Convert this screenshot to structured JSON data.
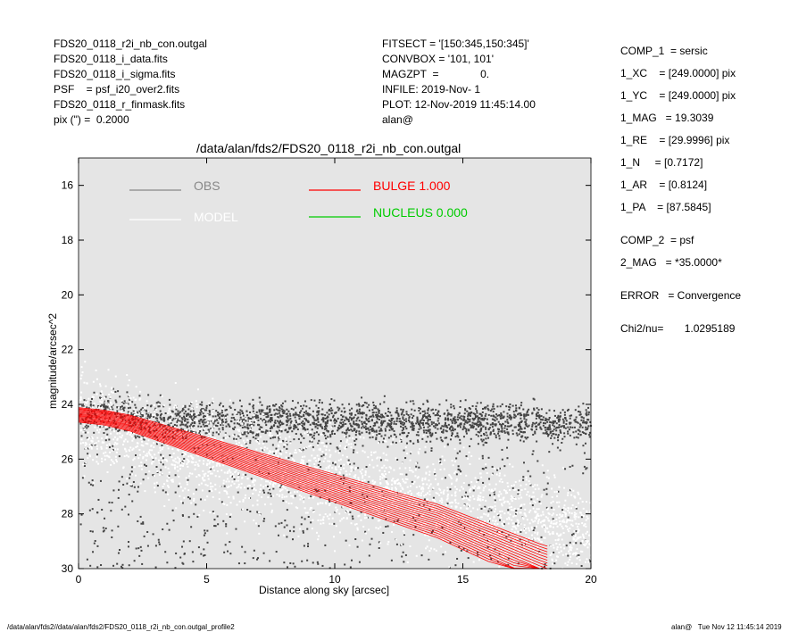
{
  "header_left": [
    "FDS20_0118_r2i_nb_con.outgal",
    "FDS20_0118_i_data.fits",
    "FDS20_0118_i_sigma.fits",
    "PSF    = psf_i20_over2.fits",
    "FDS20_0118_r_finmask.fits",
    "pix (\") =  0.2000"
  ],
  "header_mid": [
    "FITSECT = '[150:345,150:345]'",
    "CONVBOX = '101, 101'",
    "MAGZPT  =              0.",
    "INFILE: 2019-Nov- 1",
    "PLOT: 12-Nov-2019 11:45:14.00",
    "alan@"
  ],
  "params": [
    "COMP_1  = sersic",
    "1_XC    = [249.0000] pix",
    "1_YC    = [249.0000] pix",
    "1_MAG   = 19.3039",
    "1_RE    = [29.9996] pix",
    "1_N     = [0.7172]",
    "1_AR    = [0.8124]",
    "1_PA    = [87.5845]",
    "COMP_2  = psf",
    "2_MAG   = *35.0000*",
    "ERROR   = Convergence",
    "Chi2/nu=       1.0295189"
  ],
  "plot_title": "/data/alan/fds2/FDS20_0118_r2i_nb_con.outgal",
  "footer_left": "/data/alan/fds2//data/alan/fds2/FDS20_0118_r2i_nb_con.outgal_profile2",
  "footer_right": "alan@   Tue Nov 12 11:45:14 2019",
  "chart_data": {
    "type": "scatter",
    "xlabel": "Distance along sky [arcsec]",
    "ylabel": "magnitude/arcsec^2",
    "xlim": [
      0,
      20
    ],
    "ylim": [
      30,
      15
    ],
    "y_inverted": true,
    "xticks": [
      0,
      5,
      10,
      15,
      20
    ],
    "yticks": [
      16,
      18,
      20,
      22,
      24,
      26,
      28,
      30
    ],
    "background": "#e5e5e5",
    "legend": [
      {
        "label": "OBS",
        "color": "#888888"
      },
      {
        "label": "MODEL",
        "color": "#ffffff"
      },
      {
        "label": "BULGE  1.000",
        "color": "#ff0000"
      },
      {
        "label": "NUCLEUS  0.000",
        "color": "#00cc00"
      }
    ],
    "series": [
      {
        "name": "OBS",
        "color": "#444444",
        "x": [
          0.2,
          0.5,
          0.8,
          1.0,
          1.5,
          2.0,
          2.5,
          3.0,
          4.0,
          5.0,
          6.0,
          7.0,
          8.0,
          9.0,
          10.0,
          11.0,
          12.0,
          13.0,
          14.0,
          15.0,
          16.0,
          17.0,
          18.0,
          19.0,
          19.8
        ],
        "y": [
          24.6,
          24.3,
          24.2,
          24.2,
          24.3,
          24.4,
          24.5,
          24.6,
          24.6,
          24.6,
          24.6,
          24.6,
          24.6,
          24.6,
          24.6,
          24.6,
          24.6,
          24.6,
          24.7,
          24.6,
          24.6,
          24.6,
          24.6,
          24.7,
          24.6
        ]
      },
      {
        "name": "MODEL",
        "color": "#ffffff",
        "x": [
          0.0,
          1.0,
          2.0,
          3.0,
          4.0,
          5.0,
          6.0,
          7.0,
          8.0,
          9.0,
          10.0,
          11.0,
          12.0,
          13.0,
          14.0,
          15.0,
          16.0,
          17.0,
          18.0,
          19.0,
          20.0
        ],
        "y": [
          24.5,
          24.7,
          25.0,
          25.3,
          25.6,
          25.9,
          26.1,
          26.3,
          26.5,
          26.6,
          26.8,
          27.0,
          27.2,
          27.3,
          27.5,
          27.8,
          28.0,
          28.2,
          28.4,
          28.6,
          28.8
        ]
      },
      {
        "name": "BULGE  1.000",
        "color": "#ff0000",
        "x": [
          0.0,
          1.0,
          2.0,
          3.0,
          4.0,
          5.0,
          6.0,
          7.0,
          8.0,
          9.0,
          10.0,
          11.0,
          12.0,
          13.0,
          14.0,
          15.0,
          16.0,
          17.0,
          18.0,
          18.3
        ],
        "y": [
          24.4,
          24.5,
          24.7,
          25.0,
          25.3,
          25.6,
          25.9,
          26.2,
          26.5,
          26.8,
          27.1,
          27.4,
          27.7,
          28.0,
          28.3,
          28.7,
          29.1,
          29.5,
          29.9,
          30.0
        ]
      }
    ]
  }
}
